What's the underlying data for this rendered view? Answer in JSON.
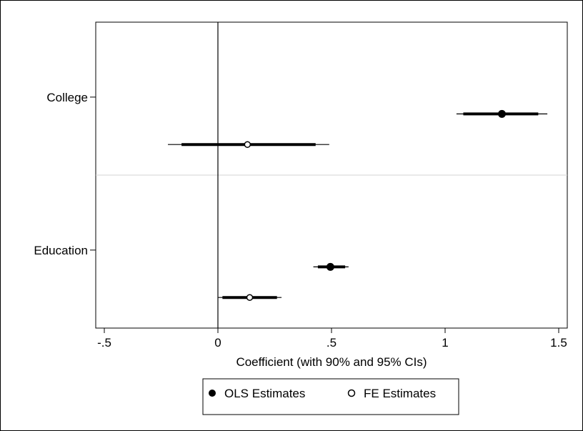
{
  "chart_data": {
    "type": "scatter",
    "subtype": "coefficient-plot",
    "title": "",
    "xlabel": "Coefficient (with 90% and 95% CIs)",
    "ylabel": "",
    "xlim": [
      -0.53,
      1.53
    ],
    "x_ticks": [
      -0.5,
      0,
      0.5,
      1,
      1.5
    ],
    "x_tick_labels": [
      "-.5",
      "0",
      ".5",
      "1",
      "1.5"
    ],
    "reference_line_x": 0,
    "categories": [
      "College",
      "Education"
    ],
    "series": [
      {
        "name": "OLS Estimates",
        "marker": "filled-circle",
        "values": [
          {
            "category": "College",
            "estimate": 1.25,
            "ci90": [
              1.08,
              1.41
            ],
            "ci95": [
              1.05,
              1.45
            ]
          },
          {
            "category": "Education",
            "estimate": 0.495,
            "ci90": [
              0.44,
              0.56
            ],
            "ci95": [
              0.42,
              0.575
            ]
          }
        ]
      },
      {
        "name": "FE Estimates",
        "marker": "hollow-circle",
        "values": [
          {
            "category": "College",
            "estimate": 0.13,
            "ci90": [
              -0.16,
              0.43
            ],
            "ci95": [
              -0.22,
              0.49
            ]
          },
          {
            "category": "Education",
            "estimate": 0.14,
            "ci90": [
              0.02,
              0.26
            ],
            "ci95": [
              0.0,
              0.28
            ]
          }
        ]
      }
    ],
    "legend": {
      "placement": "bottom",
      "items": [
        "OLS Estimates",
        "FE Estimates"
      ]
    },
    "grid": false,
    "colors": {
      "marks": "#000000",
      "separator": "#d3d3d3"
    }
  }
}
